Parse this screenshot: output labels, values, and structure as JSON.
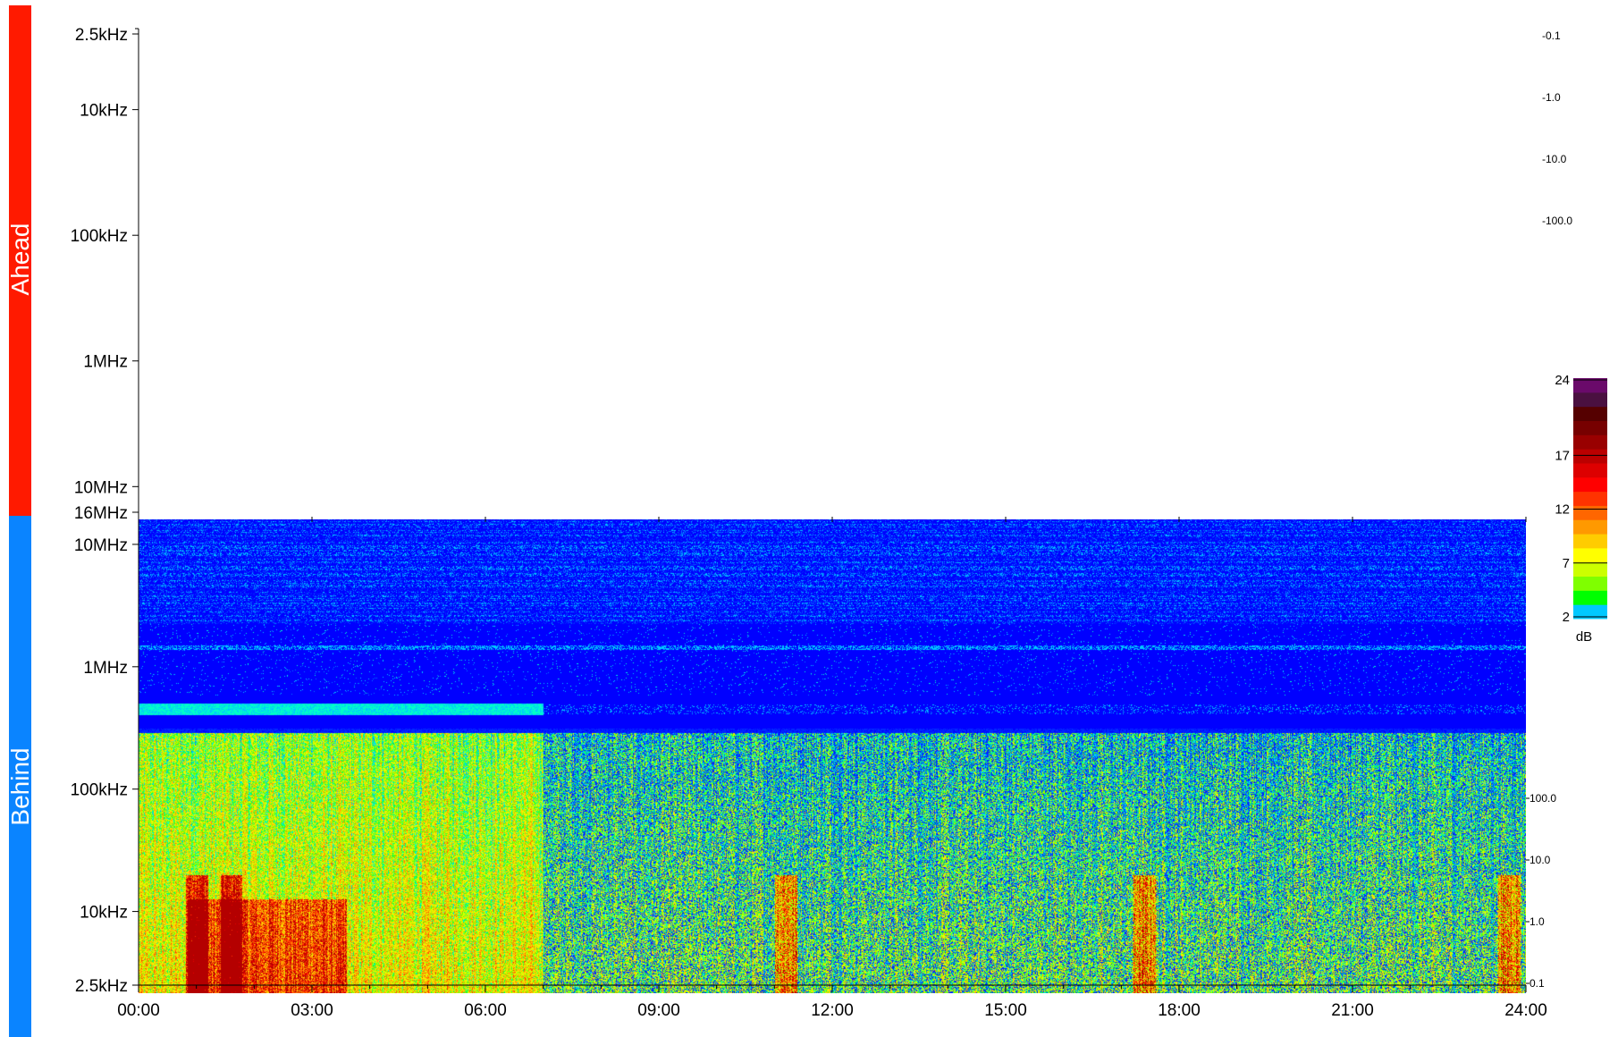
{
  "chart_data": {
    "type": "heatmap",
    "title": "",
    "panels": [
      {
        "name": "Ahead",
        "color": "#ff1a00",
        "y_ticks": [
          "2.5kHz",
          "10kHz",
          "100kHz",
          "1MHz",
          "10MHz",
          "16MHz"
        ],
        "y_scale": "log",
        "y_range": [
          "2.5kHz",
          "16MHz"
        ],
        "right_ticks": [
          "-0.1",
          "-1.0",
          "-10.0",
          "-100.0"
        ],
        "has_data": false
      },
      {
        "name": "Behind",
        "color": "#0a84ff",
        "y_ticks": [
          "10MHz",
          "1MHz",
          "100kHz",
          "10kHz",
          "2.5kHz"
        ],
        "y_scale": "log",
        "y_range": [
          "2.5kHz",
          "16MHz"
        ],
        "right_ticks": [
          "100.0",
          "10.0",
          "1.0",
          "0.1"
        ],
        "has_data": true
      }
    ],
    "x_ticks": [
      "00:00",
      "03:00",
      "06:00",
      "09:00",
      "12:00",
      "15:00",
      "18:00",
      "21:00",
      "24:00"
    ],
    "x_range_hours": [
      0,
      24
    ],
    "colorbar": {
      "label": "dB",
      "ticks": [
        24,
        17,
        12,
        7,
        2
      ],
      "range": [
        2,
        24
      ],
      "colors": [
        "#00c8ff",
        "#00ff00",
        "#7fff00",
        "#ccff00",
        "#ffff00",
        "#ffcc00",
        "#ff9900",
        "#ff6600",
        "#ff3300",
        "#ff0000",
        "#dd0000",
        "#bb0000",
        "#990000",
        "#770000",
        "#550000",
        "#4a1040",
        "#6a0a6a"
      ]
    },
    "spectrogram_features": {
      "regime_change_hour": 7.0,
      "band_300kHz_active_hours": [
        0,
        7
      ],
      "burst_hours": [
        1.0,
        1.6,
        11.2,
        17.4,
        23.7
      ]
    }
  }
}
